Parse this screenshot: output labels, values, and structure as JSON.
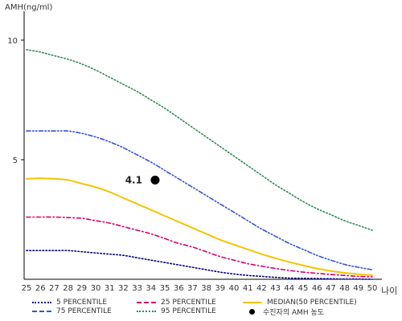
{
  "chart_data": {
    "type": "line",
    "ylabel": "AMH(ng/ml)",
    "xlabel": "나이",
    "x": [
      25,
      26,
      27,
      28,
      29,
      30,
      31,
      32,
      33,
      34,
      35,
      36,
      37,
      38,
      39,
      40,
      41,
      42,
      43,
      44,
      45,
      46,
      47,
      48,
      49,
      50
    ],
    "yticks": [
      5,
      10
    ],
    "xlim": [
      25,
      50
    ],
    "ylim": [
      0,
      11
    ],
    "series": [
      {
        "name": "5 PERCENTILE",
        "color": "#000080",
        "dash": "dot",
        "values": [
          1.2,
          1.2,
          1.2,
          1.2,
          1.15,
          1.1,
          1.05,
          1.0,
          0.9,
          0.8,
          0.7,
          0.6,
          0.5,
          0.4,
          0.3,
          0.22,
          0.16,
          0.12,
          0.08,
          0.05,
          0.04,
          0.03,
          0.02,
          0.01,
          0.01,
          0.0
        ]
      },
      {
        "name": "25 PERCENTILE",
        "color": "#d6006f",
        "dash": "dashdot",
        "values": [
          2.6,
          2.6,
          2.6,
          2.58,
          2.55,
          2.45,
          2.35,
          2.2,
          2.05,
          1.9,
          1.7,
          1.5,
          1.35,
          1.15,
          0.95,
          0.8,
          0.65,
          0.55,
          0.45,
          0.37,
          0.3,
          0.25,
          0.2,
          0.16,
          0.12,
          0.1
        ]
      },
      {
        "name": "MEDIAN(50 PERCENTILE)",
        "color": "#f5c400",
        "dash": "solid",
        "values": [
          4.2,
          4.22,
          4.2,
          4.15,
          4.0,
          3.85,
          3.65,
          3.4,
          3.15,
          2.9,
          2.65,
          2.4,
          2.15,
          1.9,
          1.65,
          1.45,
          1.25,
          1.05,
          0.88,
          0.72,
          0.58,
          0.45,
          0.35,
          0.27,
          0.21,
          0.17
        ]
      },
      {
        "name": "75 PERCENTILE",
        "color": "#3355cc",
        "dash": "dashdotdot",
        "values": [
          6.2,
          6.2,
          6.2,
          6.2,
          6.1,
          5.95,
          5.75,
          5.5,
          5.2,
          4.9,
          4.55,
          4.2,
          3.85,
          3.5,
          3.15,
          2.8,
          2.45,
          2.1,
          1.8,
          1.5,
          1.25,
          1.0,
          0.8,
          0.62,
          0.5,
          0.4
        ]
      },
      {
        "name": "95 PERCENTILE",
        "color": "#2e8b57",
        "dash": "dot",
        "values": [
          9.6,
          9.5,
          9.35,
          9.2,
          9.0,
          8.75,
          8.45,
          8.15,
          7.85,
          7.5,
          7.15,
          6.75,
          6.35,
          5.95,
          5.55,
          5.15,
          4.75,
          4.35,
          3.95,
          3.6,
          3.25,
          2.95,
          2.7,
          2.45,
          2.25,
          2.05
        ]
      }
    ],
    "marker": {
      "name": "수진자의 AMH 농도",
      "x": 34.3,
      "y": 4.15,
      "label": "4.1",
      "color": "#000000"
    }
  }
}
